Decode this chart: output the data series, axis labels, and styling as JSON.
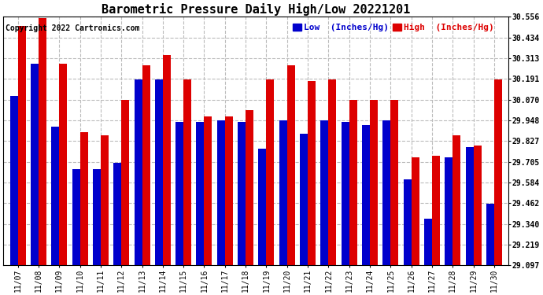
{
  "title": "Barometric Pressure Daily High/Low 20221201",
  "copyright": "Copyright 2022 Cartronics.com",
  "legend_low": "Low  (Inches/Hg)",
  "legend_high": "High  (Inches/Hg)",
  "dates": [
    "11/07",
    "11/08",
    "11/09",
    "11/10",
    "11/11",
    "11/12",
    "11/13",
    "11/14",
    "11/15",
    "11/16",
    "11/17",
    "11/18",
    "11/19",
    "11/20",
    "11/21",
    "11/22",
    "11/23",
    "11/24",
    "11/25",
    "11/26",
    "11/27",
    "11/28",
    "11/29",
    "11/30"
  ],
  "low_values": [
    30.09,
    30.28,
    29.91,
    29.66,
    29.66,
    29.7,
    30.19,
    30.19,
    29.94,
    29.94,
    29.95,
    29.94,
    29.78,
    29.95,
    29.87,
    29.95,
    29.94,
    29.92,
    29.95,
    29.6,
    29.37,
    29.73,
    29.79,
    29.46
  ],
  "high_values": [
    30.5,
    30.55,
    30.28,
    29.88,
    29.86,
    30.07,
    30.27,
    30.33,
    30.19,
    29.97,
    29.97,
    30.01,
    30.19,
    30.27,
    30.18,
    30.19,
    30.07,
    30.07,
    30.07,
    29.73,
    29.74,
    29.86,
    29.8,
    30.19
  ],
  "ylim_min": 29.097,
  "ylim_max": 30.556,
  "yticks": [
    29.097,
    29.219,
    29.34,
    29.462,
    29.584,
    29.705,
    29.827,
    29.948,
    30.07,
    30.191,
    30.313,
    30.434,
    30.556
  ],
  "bar_width": 0.38,
  "low_color": "#0000cc",
  "high_color": "#dd0000",
  "bg_color": "#ffffff",
  "grid_color": "#bbbbbb",
  "title_fontsize": 11,
  "tick_fontsize": 7,
  "legend_fontsize": 8,
  "copyright_fontsize": 7
}
